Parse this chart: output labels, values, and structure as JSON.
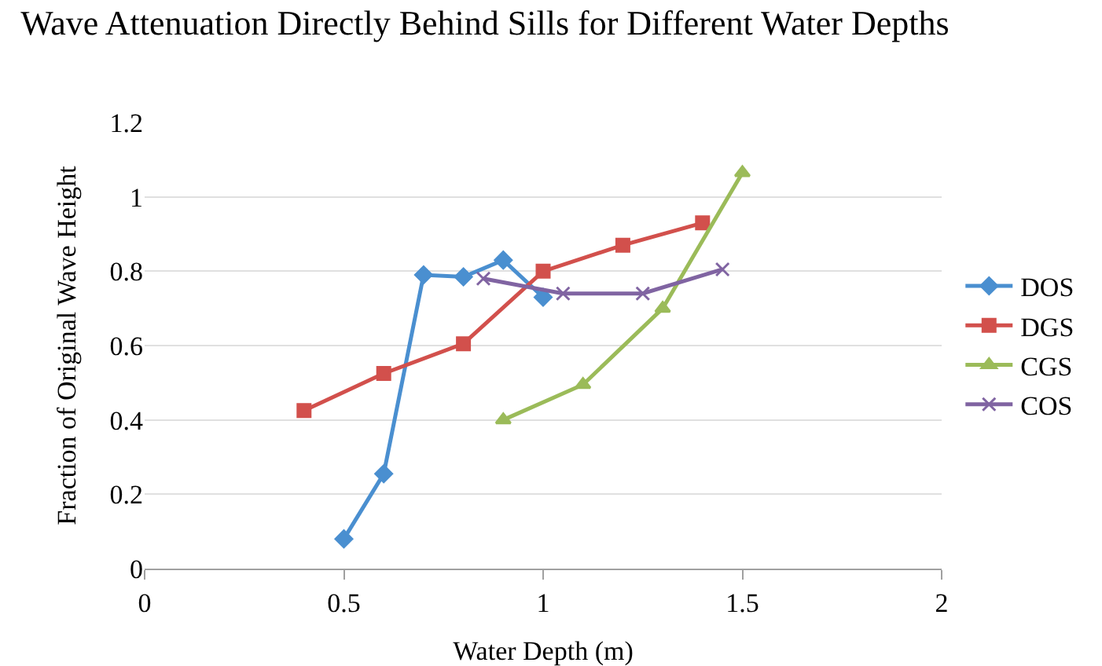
{
  "chart_data": {
    "type": "line",
    "title": "Wave Attenuation Directly Behind Sills for Different Water Depths",
    "xlabel": "Water Depth (m)",
    "ylabel": "Fraction of Original Wave Height",
    "xlim": [
      0,
      2
    ],
    "xticks": [
      0,
      0.5,
      1,
      1.5,
      2
    ],
    "ylim": [
      0,
      1.2
    ],
    "yticks": [
      0,
      0.2,
      0.4,
      0.6,
      0.8,
      1,
      1.2
    ],
    "grid": "y",
    "legend": "right",
    "line_style": "solid",
    "series": [
      {
        "name": "DOS",
        "color": "#4a8fd0",
        "marker": "diamond",
        "x": [
          0.5,
          0.6,
          0.7,
          0.8,
          0.9,
          1.0
        ],
        "values": [
          0.08,
          0.255,
          0.79,
          0.785,
          0.83,
          0.73
        ]
      },
      {
        "name": "DGS",
        "color": "#d2504c",
        "marker": "square",
        "x": [
          0.4,
          0.6,
          0.8,
          1.0,
          1.2,
          1.4
        ],
        "values": [
          0.425,
          0.525,
          0.605,
          0.8,
          0.87,
          0.93
        ]
      },
      {
        "name": "CGS",
        "color": "#9bbb59",
        "marker": "triangle",
        "x": [
          0.9,
          1.1,
          1.3,
          1.5
        ],
        "values": [
          0.4,
          0.495,
          0.7,
          1.065
        ]
      },
      {
        "name": "COS",
        "color": "#8064a2",
        "marker": "cross",
        "x": [
          0.85,
          1.05,
          1.25,
          1.45
        ],
        "values": [
          0.78,
          0.74,
          0.74,
          0.805
        ]
      }
    ]
  }
}
